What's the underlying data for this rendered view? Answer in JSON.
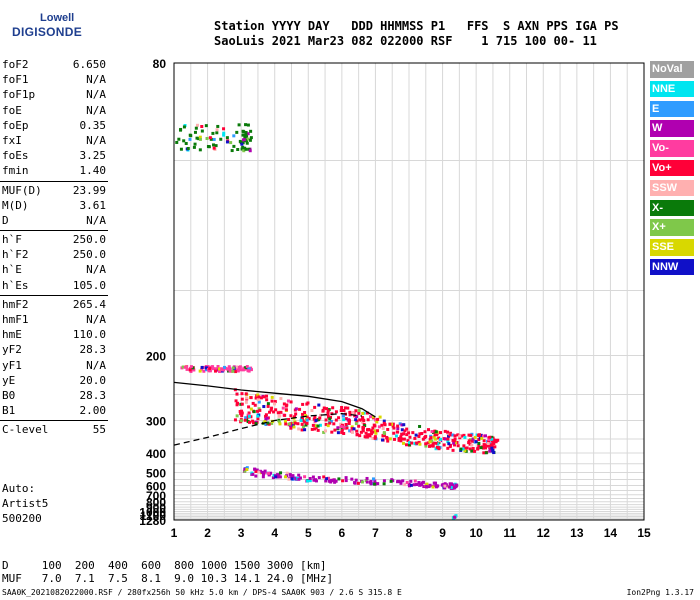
{
  "logo": {
    "top": "Lowell",
    "bottom": "DIGISONDE"
  },
  "header": {
    "line1": "Station YYYY DAY   DDD HHMMSS P1   FFS  S AXN PPS IGA PS",
    "line2": "SaoLuis 2021 Mar23 082 022000 RSF    1 715 100 00- 11"
  },
  "params_groups": [
    [
      {
        "name": "foF2",
        "value": "6.650"
      },
      {
        "name": "foF1",
        "value": "N/A"
      },
      {
        "name": "foF1p",
        "value": "N/A"
      },
      {
        "name": "foE",
        "value": "N/A"
      },
      {
        "name": "foEp",
        "value": "0.35"
      },
      {
        "name": "fxI",
        "value": "N/A"
      },
      {
        "name": "foEs",
        "value": "3.25"
      },
      {
        "name": "fmin",
        "value": "1.40"
      }
    ],
    [
      {
        "name": "MUF(D)",
        "value": "23.99"
      },
      {
        "name": "M(D)",
        "value": "3.61"
      },
      {
        "name": "D",
        "value": "N/A"
      }
    ],
    [
      {
        "name": "h`F",
        "value": "250.0"
      },
      {
        "name": "h`F2",
        "value": "250.0"
      },
      {
        "name": "h`E",
        "value": "N/A"
      },
      {
        "name": "h`Es",
        "value": "105.0"
      }
    ],
    [
      {
        "name": "hmF2",
        "value": "265.4"
      },
      {
        "name": "hmF1",
        "value": "N/A"
      },
      {
        "name": "hmE",
        "value": "110.0"
      },
      {
        "name": "yF2",
        "value": "28.3"
      },
      {
        "name": "yF1",
        "value": "N/A"
      },
      {
        "name": "yE",
        "value": "20.0"
      },
      {
        "name": "B0",
        "value": "28.3"
      },
      {
        "name": "B1",
        "value": "2.00"
      }
    ],
    [
      {
        "name": "C-level",
        "value": "55"
      }
    ]
  ],
  "auto_block": {
    "line1": "Auto:",
    "line2": "Artist5",
    "line3": "500200"
  },
  "bottom_table": {
    "line1": "D     100  200  400  600  800 1000 1500 3000 [km]",
    "line2": "MUF   7.0  7.1  7.5  8.1  9.0 10.3 14.1 24.0 [MHz]"
  },
  "footer": {
    "left": "SAA0K_2021082022000.RSF / 280fx256h 50 kHz 5.0 km / DPS-4 SAA0K 903 / 2.6 S 315.8 E",
    "right": "Ion2Png 1.3.17"
  },
  "legend": [
    {
      "label": "NoVal",
      "color": "#a0a0a0"
    },
    {
      "label": "NNE",
      "color": "#00e5f0"
    },
    {
      "label": "E",
      "color": "#2f9cff"
    },
    {
      "label": "W",
      "color": "#b000b0"
    },
    {
      "label": "Vo-",
      "color": "#ff3ca0"
    },
    {
      "label": "Vo+",
      "color": "#ff0038"
    },
    {
      "label": "SSW",
      "color": "#ffb0b0"
    },
    {
      "label": "X-",
      "color": "#0a7a0a"
    },
    {
      "label": "X+",
      "color": "#7fc84a"
    },
    {
      "label": "SSE",
      "color": "#d8d800"
    },
    {
      "label": "NNW",
      "color": "#1010c8"
    }
  ],
  "chart_data": {
    "type": "scatter",
    "title": "",
    "xlabel": "",
    "ylabel": "",
    "xlim": [
      1,
      15
    ],
    "ylim": [
      80,
      1280
    ],
    "y_scale": "reciprocal",
    "x_ticks": [
      1,
      2,
      3,
      4,
      5,
      6,
      7,
      8,
      9,
      10,
      11,
      12,
      13,
      14,
      15
    ],
    "y_ticks": [
      80,
      200,
      300,
      400,
      500,
      600,
      700,
      800,
      900,
      1000,
      1100,
      1280
    ],
    "grid": true,
    "legend_position": "right",
    "traces": [
      {
        "region": "F-layer main trace",
        "color": "#ff0038",
        "points": [
          [
            2.8,
            258
          ],
          [
            3.5,
            265
          ],
          [
            4.5,
            275
          ],
          [
            5.5,
            285
          ],
          [
            6.3,
            290
          ],
          [
            7.0,
            305
          ],
          [
            8.0,
            325
          ],
          [
            9.0,
            340
          ],
          [
            10.0,
            350
          ],
          [
            10.6,
            355
          ]
        ]
      },
      {
        "region": "F-layer second-hop",
        "color": "#b000b0",
        "points": [
          [
            3.0,
            470
          ],
          [
            4.0,
            500
          ],
          [
            5.0,
            520
          ],
          [
            6.5,
            540
          ],
          [
            8.0,
            560
          ],
          [
            9.0,
            580
          ],
          [
            9.4,
            590
          ]
        ]
      },
      {
        "region": "Es trace",
        "color": "#ff3ca0",
        "points": [
          [
            1.2,
            212
          ],
          [
            2.0,
            212
          ],
          [
            2.7,
            212
          ],
          [
            3.25,
            212
          ]
        ]
      },
      {
        "region": "Low-height echoes",
        "color": "#0a7a0a",
        "points": [
          [
            1.0,
            93
          ],
          [
            2.0,
            93
          ],
          [
            3.0,
            93
          ],
          [
            3.25,
            93
          ]
        ]
      },
      {
        "region": "Upper echoes near 9.3 MHz",
        "color": "#00e5f0",
        "points": [
          [
            9.3,
            1120
          ],
          [
            9.3,
            1140
          ],
          [
            9.35,
            1060
          ]
        ]
      }
    ],
    "profile_curves": [
      {
        "name": "profile-dashed",
        "style": "dashed",
        "points": [
          [
            1.0,
            370
          ],
          [
            2.0,
            345
          ],
          [
            3.0,
            320
          ],
          [
            4.0,
            300
          ],
          [
            5.0,
            290
          ],
          [
            6.0,
            285
          ],
          [
            6.6,
            290
          ]
        ]
      },
      {
        "name": "profile-solid",
        "style": "solid",
        "points": [
          [
            1.0,
            232
          ],
          [
            2.0,
            237
          ],
          [
            3.0,
            243
          ],
          [
            4.0,
            248
          ],
          [
            5.0,
            253
          ],
          [
            6.0,
            262
          ],
          [
            6.6,
            275
          ],
          [
            7.0,
            292
          ]
        ]
      }
    ]
  }
}
